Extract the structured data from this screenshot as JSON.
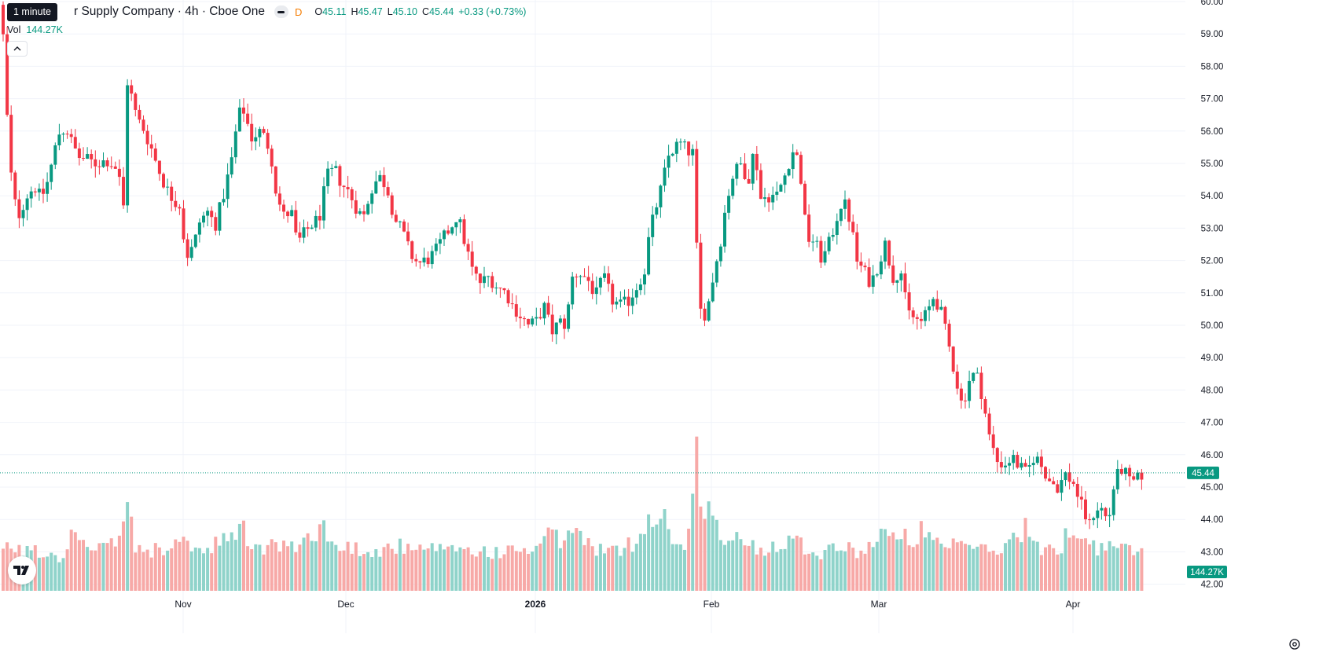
{
  "legend": {
    "title": "r Supply Company · 4h · Cboe One",
    "open_label": "O",
    "open": "45.11",
    "high_label": "H",
    "high": "45.47",
    "low_label": "L",
    "low": "45.10",
    "close_label": "C",
    "close": "45.44",
    "change": "+0.33 (+0.73%)",
    "tooltip": "1 minute"
  },
  "volume": {
    "label": "Vol",
    "value": "144.27K"
  },
  "colors": {
    "up": "#089981",
    "down": "#f23645",
    "up_vol": "#8fd3ca",
    "down_vol": "#f7a9a7",
    "grid": "#f0f3fa"
  },
  "icons": {
    "collapse": "chevron-up-icon",
    "logo": "tradingview-logo-icon",
    "settings": "gear-icon",
    "indicator": "dash-icon",
    "data_type": "delay-icon"
  },
  "chart_data": {
    "type": "candlestick",
    "title": "r Supply Company · 4h · Cboe One",
    "y_axis_ticks": [
      "60.00",
      "59.00",
      "58.00",
      "57.00",
      "56.00",
      "55.00",
      "54.00",
      "53.00",
      "52.00",
      "51.00",
      "50.00",
      "49.00",
      "48.00",
      "47.00",
      "46.00",
      "45.00",
      "44.00",
      "43.00",
      "42.00"
    ],
    "ylim": [
      42.0,
      60.0
    ],
    "x_axis_ticks": [
      {
        "label": "Nov",
        "bold": false
      },
      {
        "label": "Dec",
        "bold": false
      },
      {
        "label": "2026",
        "bold": true
      },
      {
        "label": "Feb",
        "bold": false
      },
      {
        "label": "Mar",
        "bold": false
      },
      {
        "label": "Apr",
        "bold": false
      }
    ],
    "last_price": "45.44",
    "last_volume": "144.27K",
    "grid": true,
    "price_points": [
      [
        0,
        59.9
      ],
      [
        10,
        55.0
      ],
      [
        20,
        53.3
      ],
      [
        32,
        54.0
      ],
      [
        42,
        54.3
      ],
      [
        50,
        53.9
      ],
      [
        58,
        54.4
      ],
      [
        66,
        55.2
      ],
      [
        72,
        55.9
      ],
      [
        82,
        56.1
      ],
      [
        90,
        55.6
      ],
      [
        98,
        55.2
      ],
      [
        110,
        55.1
      ],
      [
        120,
        55.0
      ],
      [
        135,
        55.1
      ],
      [
        148,
        54.8
      ],
      [
        156,
        53.5
      ],
      [
        158,
        57.7
      ],
      [
        164,
        57.2
      ],
      [
        172,
        56.4
      ],
      [
        180,
        56.1
      ],
      [
        190,
        55.5
      ],
      [
        200,
        54.8
      ],
      [
        210,
        54.2
      ],
      [
        218,
        53.9
      ],
      [
        228,
        53.7
      ],
      [
        234,
        52.1
      ],
      [
        244,
        52.4
      ],
      [
        252,
        53.2
      ],
      [
        262,
        53.5
      ],
      [
        272,
        53.1
      ],
      [
        282,
        54.0
      ],
      [
        292,
        55.0
      ],
      [
        300,
        56.3
      ],
      [
        306,
        56.8
      ],
      [
        318,
        55.8
      ],
      [
        330,
        56.0
      ],
      [
        342,
        55.4
      ],
      [
        350,
        54.0
      ],
      [
        360,
        53.3
      ],
      [
        368,
        53.6
      ],
      [
        376,
        52.5
      ],
      [
        384,
        52.8
      ],
      [
        394,
        53.1
      ],
      [
        404,
        53.3
      ],
      [
        414,
        54.6
      ],
      [
        424,
        54.8
      ],
      [
        432,
        54.4
      ],
      [
        442,
        54.1
      ],
      [
        452,
        53.6
      ],
      [
        460,
        53.3
      ],
      [
        470,
        54.2
      ],
      [
        480,
        54.6
      ],
      [
        490,
        54.3
      ],
      [
        500,
        53.3
      ],
      [
        510,
        52.9
      ],
      [
        520,
        52.2
      ],
      [
        530,
        51.9
      ],
      [
        540,
        52.0
      ],
      [
        550,
        52.2
      ],
      [
        560,
        52.6
      ],
      [
        570,
        53.0
      ],
      [
        580,
        53.4
      ],
      [
        590,
        52.5
      ],
      [
        600,
        51.6
      ],
      [
        610,
        51.3
      ],
      [
        620,
        51.5
      ],
      [
        630,
        51.2
      ],
      [
        642,
        51.0
      ],
      [
        650,
        50.6
      ],
      [
        660,
        50.3
      ],
      [
        670,
        50.0
      ],
      [
        680,
        50.1
      ],
      [
        690,
        50.6
      ],
      [
        700,
        49.8
      ],
      [
        710,
        50.1
      ],
      [
        718,
        50.0
      ],
      [
        727,
        51.6
      ],
      [
        736,
        51.6
      ],
      [
        746,
        51.4
      ],
      [
        756,
        50.9
      ],
      [
        766,
        51.5
      ],
      [
        776,
        50.8
      ],
      [
        786,
        50.6
      ],
      [
        796,
        50.7
      ],
      [
        806,
        51.1
      ],
      [
        818,
        51.7
      ],
      [
        824,
        52.8
      ],
      [
        832,
        53.6
      ],
      [
        840,
        54.3
      ],
      [
        848,
        55.2
      ],
      [
        856,
        55.5
      ],
      [
        864,
        55.6
      ],
      [
        872,
        55.4
      ],
      [
        880,
        55.3
      ],
      [
        884,
        52.5
      ],
      [
        890,
        50.2
      ],
      [
        898,
        50.5
      ],
      [
        906,
        51.6
      ],
      [
        914,
        52.5
      ],
      [
        922,
        53.8
      ],
      [
        930,
        54.6
      ],
      [
        940,
        55.0
      ],
      [
        950,
        54.5
      ],
      [
        958,
        55.5
      ],
      [
        966,
        53.9
      ],
      [
        976,
        54.0
      ],
      [
        986,
        54.0
      ],
      [
        996,
        54.6
      ],
      [
        1006,
        55.4
      ],
      [
        1014,
        55.1
      ],
      [
        1018,
        54.3
      ],
      [
        1024,
        52.7
      ],
      [
        1034,
        52.6
      ],
      [
        1044,
        52.0
      ],
      [
        1054,
        52.6
      ],
      [
        1062,
        53.3
      ],
      [
        1070,
        53.9
      ],
      [
        1080,
        53.2
      ],
      [
        1088,
        52.0
      ],
      [
        1096,
        51.7
      ],
      [
        1106,
        51.3
      ],
      [
        1114,
        51.8
      ],
      [
        1124,
        52.5
      ],
      [
        1134,
        51.5
      ],
      [
        1144,
        51.7
      ],
      [
        1152,
        50.4
      ],
      [
        1162,
        50.2
      ],
      [
        1170,
        50.1
      ],
      [
        1178,
        50.4
      ],
      [
        1186,
        50.9
      ],
      [
        1194,
        50.5
      ],
      [
        1202,
        49.7
      ],
      [
        1212,
        48.6
      ],
      [
        1222,
        47.5
      ],
      [
        1232,
        48.4
      ],
      [
        1240,
        48.5
      ],
      [
        1248,
        47.8
      ],
      [
        1256,
        46.6
      ],
      [
        1266,
        45.8
      ],
      [
        1276,
        45.7
      ],
      [
        1286,
        45.9
      ],
      [
        1296,
        45.6
      ],
      [
        1304,
        45.4
      ],
      [
        1314,
        46.0
      ],
      [
        1324,
        45.6
      ],
      [
        1334,
        45.2
      ],
      [
        1344,
        45.0
      ],
      [
        1354,
        45.4
      ],
      [
        1364,
        45.1
      ],
      [
        1374,
        44.4
      ],
      [
        1384,
        43.8
      ],
      [
        1392,
        44.4
      ],
      [
        1400,
        44.3
      ],
      [
        1408,
        43.9
      ],
      [
        1416,
        45.2
      ],
      [
        1426,
        45.6
      ],
      [
        1436,
        45.1
      ],
      [
        1444,
        45.2
      ],
      [
        1452,
        45.44
      ]
    ],
    "volume_points": [
      [
        0,
        24
      ],
      [
        10,
        34
      ],
      [
        20,
        31
      ],
      [
        30,
        26
      ],
      [
        40,
        37
      ],
      [
        50,
        25
      ],
      [
        58,
        30
      ],
      [
        66,
        29
      ],
      [
        72,
        25
      ],
      [
        82,
        33
      ],
      [
        92,
        43
      ],
      [
        102,
        40
      ],
      [
        112,
        27
      ],
      [
        122,
        31
      ],
      [
        132,
        30
      ],
      [
        142,
        36
      ],
      [
        150,
        34
      ],
      [
        156,
        70
      ],
      [
        162,
        57
      ],
      [
        170,
        32
      ],
      [
        180,
        31
      ],
      [
        190,
        26
      ],
      [
        200,
        34
      ],
      [
        208,
        30
      ],
      [
        216,
        34
      ],
      [
        226,
        30
      ],
      [
        234,
        38
      ],
      [
        242,
        34
      ],
      [
        252,
        30
      ],
      [
        262,
        27
      ],
      [
        272,
        34
      ],
      [
        282,
        36
      ],
      [
        292,
        38
      ],
      [
        300,
        48
      ],
      [
        308,
        44
      ],
      [
        318,
        34
      ],
      [
        328,
        30
      ],
      [
        338,
        34
      ],
      [
        348,
        32
      ],
      [
        358,
        36
      ],
      [
        368,
        30
      ],
      [
        378,
        34
      ],
      [
        388,
        38
      ],
      [
        398,
        45
      ],
      [
        406,
        48
      ],
      [
        414,
        44
      ],
      [
        424,
        32
      ],
      [
        434,
        30
      ],
      [
        444,
        34
      ],
      [
        454,
        30
      ],
      [
        464,
        34
      ],
      [
        474,
        28
      ],
      [
        484,
        30
      ],
      [
        494,
        32
      ],
      [
        504,
        34
      ],
      [
        514,
        30
      ],
      [
        524,
        28
      ],
      [
        534,
        30
      ],
      [
        544,
        32
      ],
      [
        554,
        30
      ],
      [
        564,
        28
      ],
      [
        574,
        30
      ],
      [
        584,
        34
      ],
      [
        594,
        30
      ],
      [
        604,
        28
      ],
      [
        614,
        30
      ],
      [
        624,
        28
      ],
      [
        634,
        30
      ],
      [
        644,
        28
      ],
      [
        654,
        30
      ],
      [
        664,
        32
      ],
      [
        674,
        28
      ],
      [
        684,
        30
      ],
      [
        690,
        42
      ],
      [
        700,
        40
      ],
      [
        710,
        36
      ],
      [
        720,
        42
      ],
      [
        728,
        45
      ],
      [
        738,
        38
      ],
      [
        748,
        34
      ],
      [
        758,
        32
      ],
      [
        768,
        30
      ],
      [
        778,
        28
      ],
      [
        788,
        30
      ],
      [
        798,
        34
      ],
      [
        808,
        36
      ],
      [
        816,
        50
      ],
      [
        824,
        54
      ],
      [
        832,
        48
      ],
      [
        838,
        60
      ],
      [
        846,
        52
      ],
      [
        854,
        40
      ],
      [
        862,
        34
      ],
      [
        870,
        30
      ],
      [
        878,
        54
      ],
      [
        884,
        100
      ],
      [
        890,
        75
      ],
      [
        896,
        62
      ],
      [
        906,
        54
      ],
      [
        914,
        42
      ],
      [
        922,
        38
      ],
      [
        930,
        36
      ],
      [
        940,
        38
      ],
      [
        950,
        36
      ],
      [
        960,
        32
      ],
      [
        970,
        30
      ],
      [
        980,
        34
      ],
      [
        990,
        36
      ],
      [
        1000,
        40
      ],
      [
        1010,
        38
      ],
      [
        1020,
        34
      ],
      [
        1030,
        30
      ],
      [
        1040,
        28
      ],
      [
        1050,
        30
      ],
      [
        1060,
        34
      ],
      [
        1070,
        32
      ],
      [
        1080,
        30
      ],
      [
        1090,
        30
      ],
      [
        1100,
        32
      ],
      [
        1110,
        34
      ],
      [
        1118,
        50
      ],
      [
        1126,
        42
      ],
      [
        1134,
        38
      ],
      [
        1144,
        34
      ],
      [
        1152,
        42
      ],
      [
        1162,
        38
      ],
      [
        1170,
        44
      ],
      [
        1178,
        40
      ],
      [
        1188,
        34
      ],
      [
        1198,
        30
      ],
      [
        1208,
        32
      ],
      [
        1218,
        34
      ],
      [
        1228,
        36
      ],
      [
        1238,
        32
      ],
      [
        1248,
        30
      ],
      [
        1258,
        30
      ],
      [
        1266,
        28
      ],
      [
        1276,
        34
      ],
      [
        1286,
        38
      ],
      [
        1296,
        44
      ],
      [
        1302,
        48
      ],
      [
        1310,
        38
      ],
      [
        1320,
        30
      ],
      [
        1330,
        28
      ],
      [
        1340,
        32
      ],
      [
        1350,
        30
      ],
      [
        1356,
        48
      ],
      [
        1364,
        46
      ],
      [
        1372,
        40
      ],
      [
        1380,
        38
      ],
      [
        1390,
        34
      ],
      [
        1398,
        30
      ],
      [
        1408,
        36
      ],
      [
        1416,
        34
      ],
      [
        1426,
        30
      ],
      [
        1436,
        30
      ],
      [
        1444,
        28
      ],
      [
        1452,
        32
      ]
    ]
  }
}
